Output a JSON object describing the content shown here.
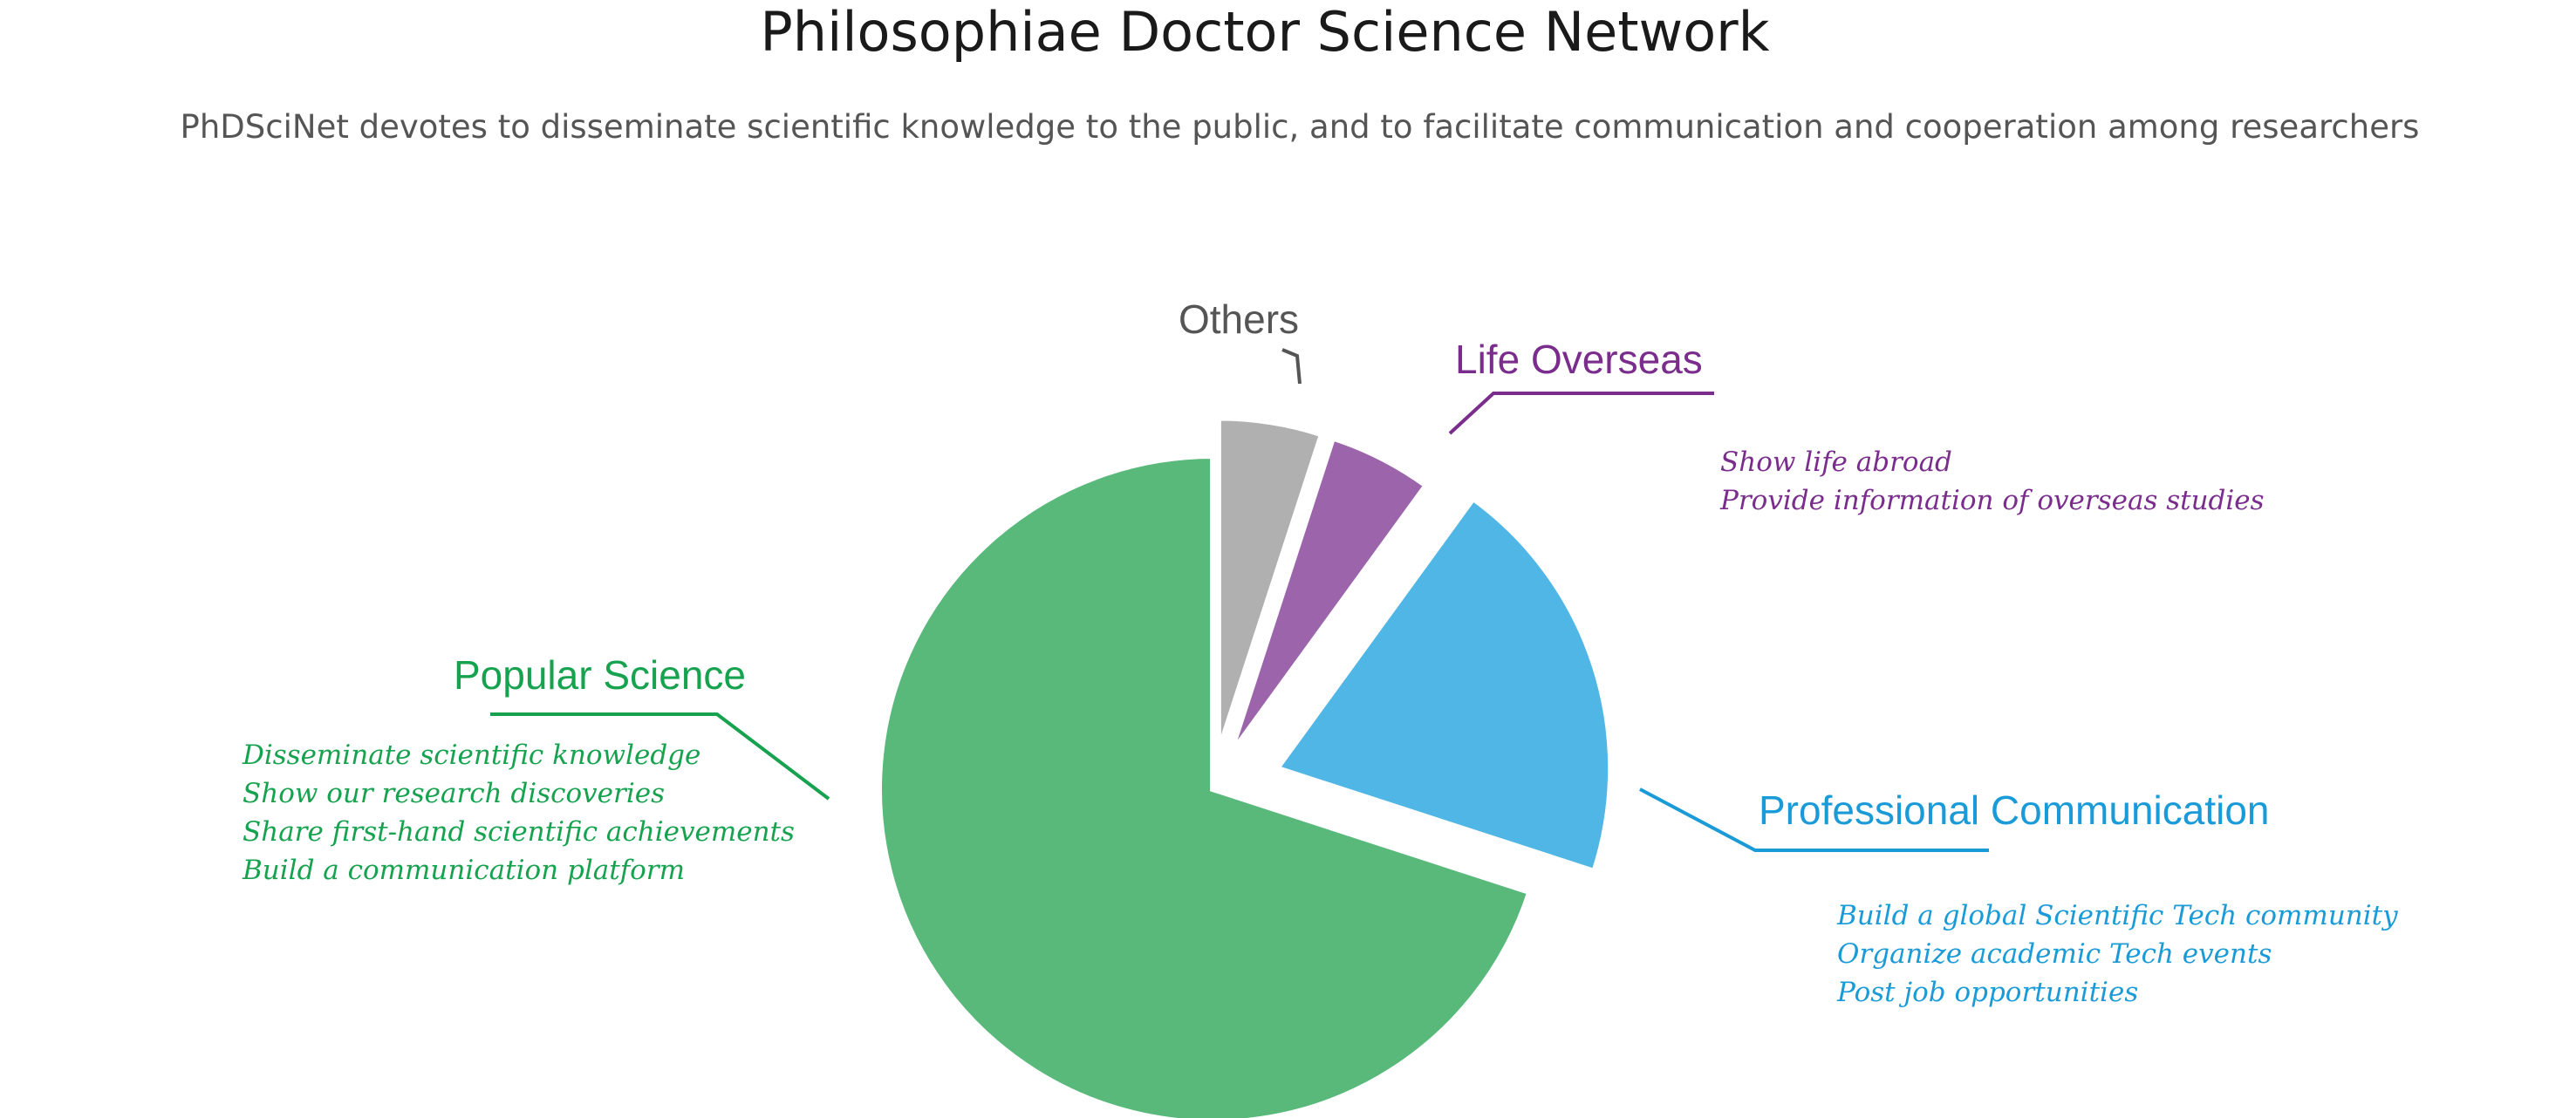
{
  "colors": {
    "popular_science": "#58b97b",
    "professional_communication": "#50b6e6",
    "life_overseas": "#9c64aa",
    "others": "#b0b0b0",
    "popular_science_text": "#17a24f",
    "professional_communication_text": "#1a9bd7",
    "life_overseas_text": "#7a2d8c",
    "others_text": "#555555"
  },
  "chart_data": {
    "type": "pie",
    "title": "Philosophiae Doctor Science Network",
    "subtitle": "PhDSciNet devotes to disseminate scientific knowledge to the public, and to facilitate communication and cooperation among researchers",
    "legend": "none",
    "slices": [
      {
        "label": "Others",
        "value": 5,
        "color": "#b0b0b0",
        "label_color": "#555555",
        "notes": []
      },
      {
        "label": "Life Overseas",
        "value": 5,
        "color": "#9c64aa",
        "label_color": "#7a2d8c",
        "notes": [
          "Show life abroad",
          "Provide information of overseas studies"
        ]
      },
      {
        "label": "Professional Communication",
        "value": 20,
        "color": "#50b6e6",
        "label_color": "#1a9bd7",
        "notes": [
          "Build a global Scientific Tech community",
          "Organize academic Tech events",
          "Post job opportunities"
        ]
      },
      {
        "label": "Popular Science",
        "value": 70,
        "color": "#58b97b",
        "label_color": "#17a24f",
        "notes": [
          "Disseminate scientific knowledge",
          "Show our research discoveries",
          "Share first-hand scientific achievements",
          "Build a communication platform"
        ]
      }
    ]
  }
}
